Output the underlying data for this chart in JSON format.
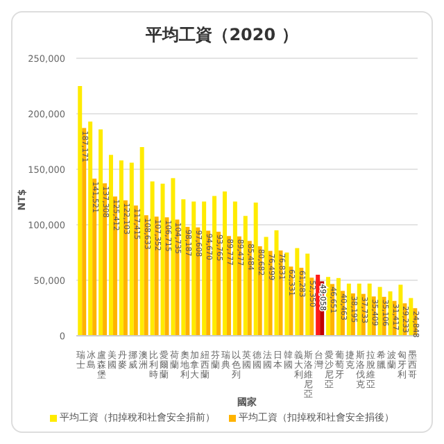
{
  "chart_data": {
    "type": "bar",
    "title": "平均工資（2020 ）",
    "xlabel": "國家",
    "ylabel": "NT$",
    "categories": [
      "瑞士",
      "冰島",
      "盧森堡",
      "美國",
      "丹麥",
      "挪威",
      "澳洲",
      "比利時",
      "愛爾蘭",
      "荷蘭",
      "奧地利",
      "加拿大",
      "紐西蘭",
      "芬蘭",
      "瑞典",
      "以色列",
      "英國",
      "德國",
      "法國",
      "日本",
      "韓國",
      "義大利",
      "斯洛維尼亞",
      "台灣",
      "愛沙尼亞",
      "葡萄牙",
      "捷克",
      "斯洛伐克",
      "拉脫維亞",
      "希臘",
      "波蘭",
      "匈牙利",
      "墨西哥"
    ],
    "series": [
      {
        "name": "平均工資（扣掉稅和社會安全捐前）",
        "color": "#ffeb00",
        "colors": [
          "#ffeb00",
          "#ffeb00",
          "#ffeb00",
          "#ffeb00",
          "#ffeb00",
          "#ffeb00",
          "#ffeb00",
          "#ffeb00",
          "#ffeb00",
          "#ffeb00",
          "#ffeb00",
          "#ffeb00",
          "#ffeb00",
          "#ffeb00",
          "#ffeb00",
          "#ffeb00",
          "#ffeb00",
          "#ffeb00",
          "#ffeb00",
          "#ffeb00",
          "#ffeb00",
          "#ffeb00",
          "#ffeb00",
          "#ff1a1a",
          "#ffeb00",
          "#ffeb00",
          "#ffeb00",
          "#ffeb00",
          "#ffeb00",
          "#ffeb00",
          "#ffeb00",
          "#ffeb00",
          "#ffeb00"
        ],
        "values": [
          225000,
          193000,
          186000,
          163000,
          158000,
          156000,
          170000,
          139000,
          137000,
          142000,
          123000,
          121000,
          121000,
          126000,
          130000,
          121000,
          108000,
          120000,
          89000,
          95000,
          75000,
          79000,
          74000,
          55000,
          53000,
          52000,
          47000,
          47000,
          47000,
          44000,
          40000,
          46000,
          34000
        ]
      },
      {
        "name": "平均工資（扣掉稅和社會安全捐後）",
        "color": "#ffb300",
        "colors": [
          "#ffb300",
          "#ffb300",
          "#ffb300",
          "#ffb300",
          "#ffb300",
          "#ffb300",
          "#ffb300",
          "#ffb300",
          "#ffb300",
          "#ffb300",
          "#ffb300",
          "#ffb300",
          "#ffb300",
          "#ffb300",
          "#ffb300",
          "#ffb300",
          "#ffb300",
          "#ffb300",
          "#ffb300",
          "#ffb300",
          "#ffb300",
          "#ffb300",
          "#ffb300",
          "#c00000",
          "#ffb300",
          "#ffb300",
          "#ffb300",
          "#ffb300",
          "#ffb300",
          "#ffb300",
          "#ffb300",
          "#ffb300",
          "#ffb300"
        ],
        "values": [
          187171,
          141521,
          137308,
          125412,
          122103,
          117415,
          108633,
          107352,
          106715,
          104735,
          98187,
          97608,
          94670,
          93765,
          89777,
          89477,
          85484,
          80682,
          76499,
          76831,
          62331,
          61283,
          52350,
          49058,
          46651,
          40463,
          38195,
          37733,
          35409,
          35106,
          31417,
          29233,
          24848
        ],
        "value_labels": [
          "187,171",
          "141,521",
          "137,308",
          "125,412",
          "122,103",
          "117,415",
          "108,633",
          "107,352",
          "106,715",
          "104,735",
          "98,187",
          "97,608",
          "94,670",
          "93,765",
          "89,777",
          "89,477",
          "85,484",
          "80,682",
          "76,499",
          "76,831",
          "62,331",
          "61,283",
          "52,350",
          "49,058",
          "46,651",
          "40,463",
          "38,195",
          "37,733",
          "35,409",
          "35,106",
          "31,417",
          "29,233",
          "24,848"
        ]
      }
    ],
    "ylim": [
      0,
      250000
    ],
    "yticks": [
      {
        "value": 0,
        "label": "0"
      },
      {
        "value": 50000,
        "label": "50,000"
      },
      {
        "value": 100000,
        "label": "100,000"
      },
      {
        "value": 150000,
        "label": "150,000"
      },
      {
        "value": 200000,
        "label": "200,000"
      },
      {
        "value": 250000,
        "label": "250,000"
      }
    ],
    "grid": "y",
    "legend": "bottom"
  }
}
